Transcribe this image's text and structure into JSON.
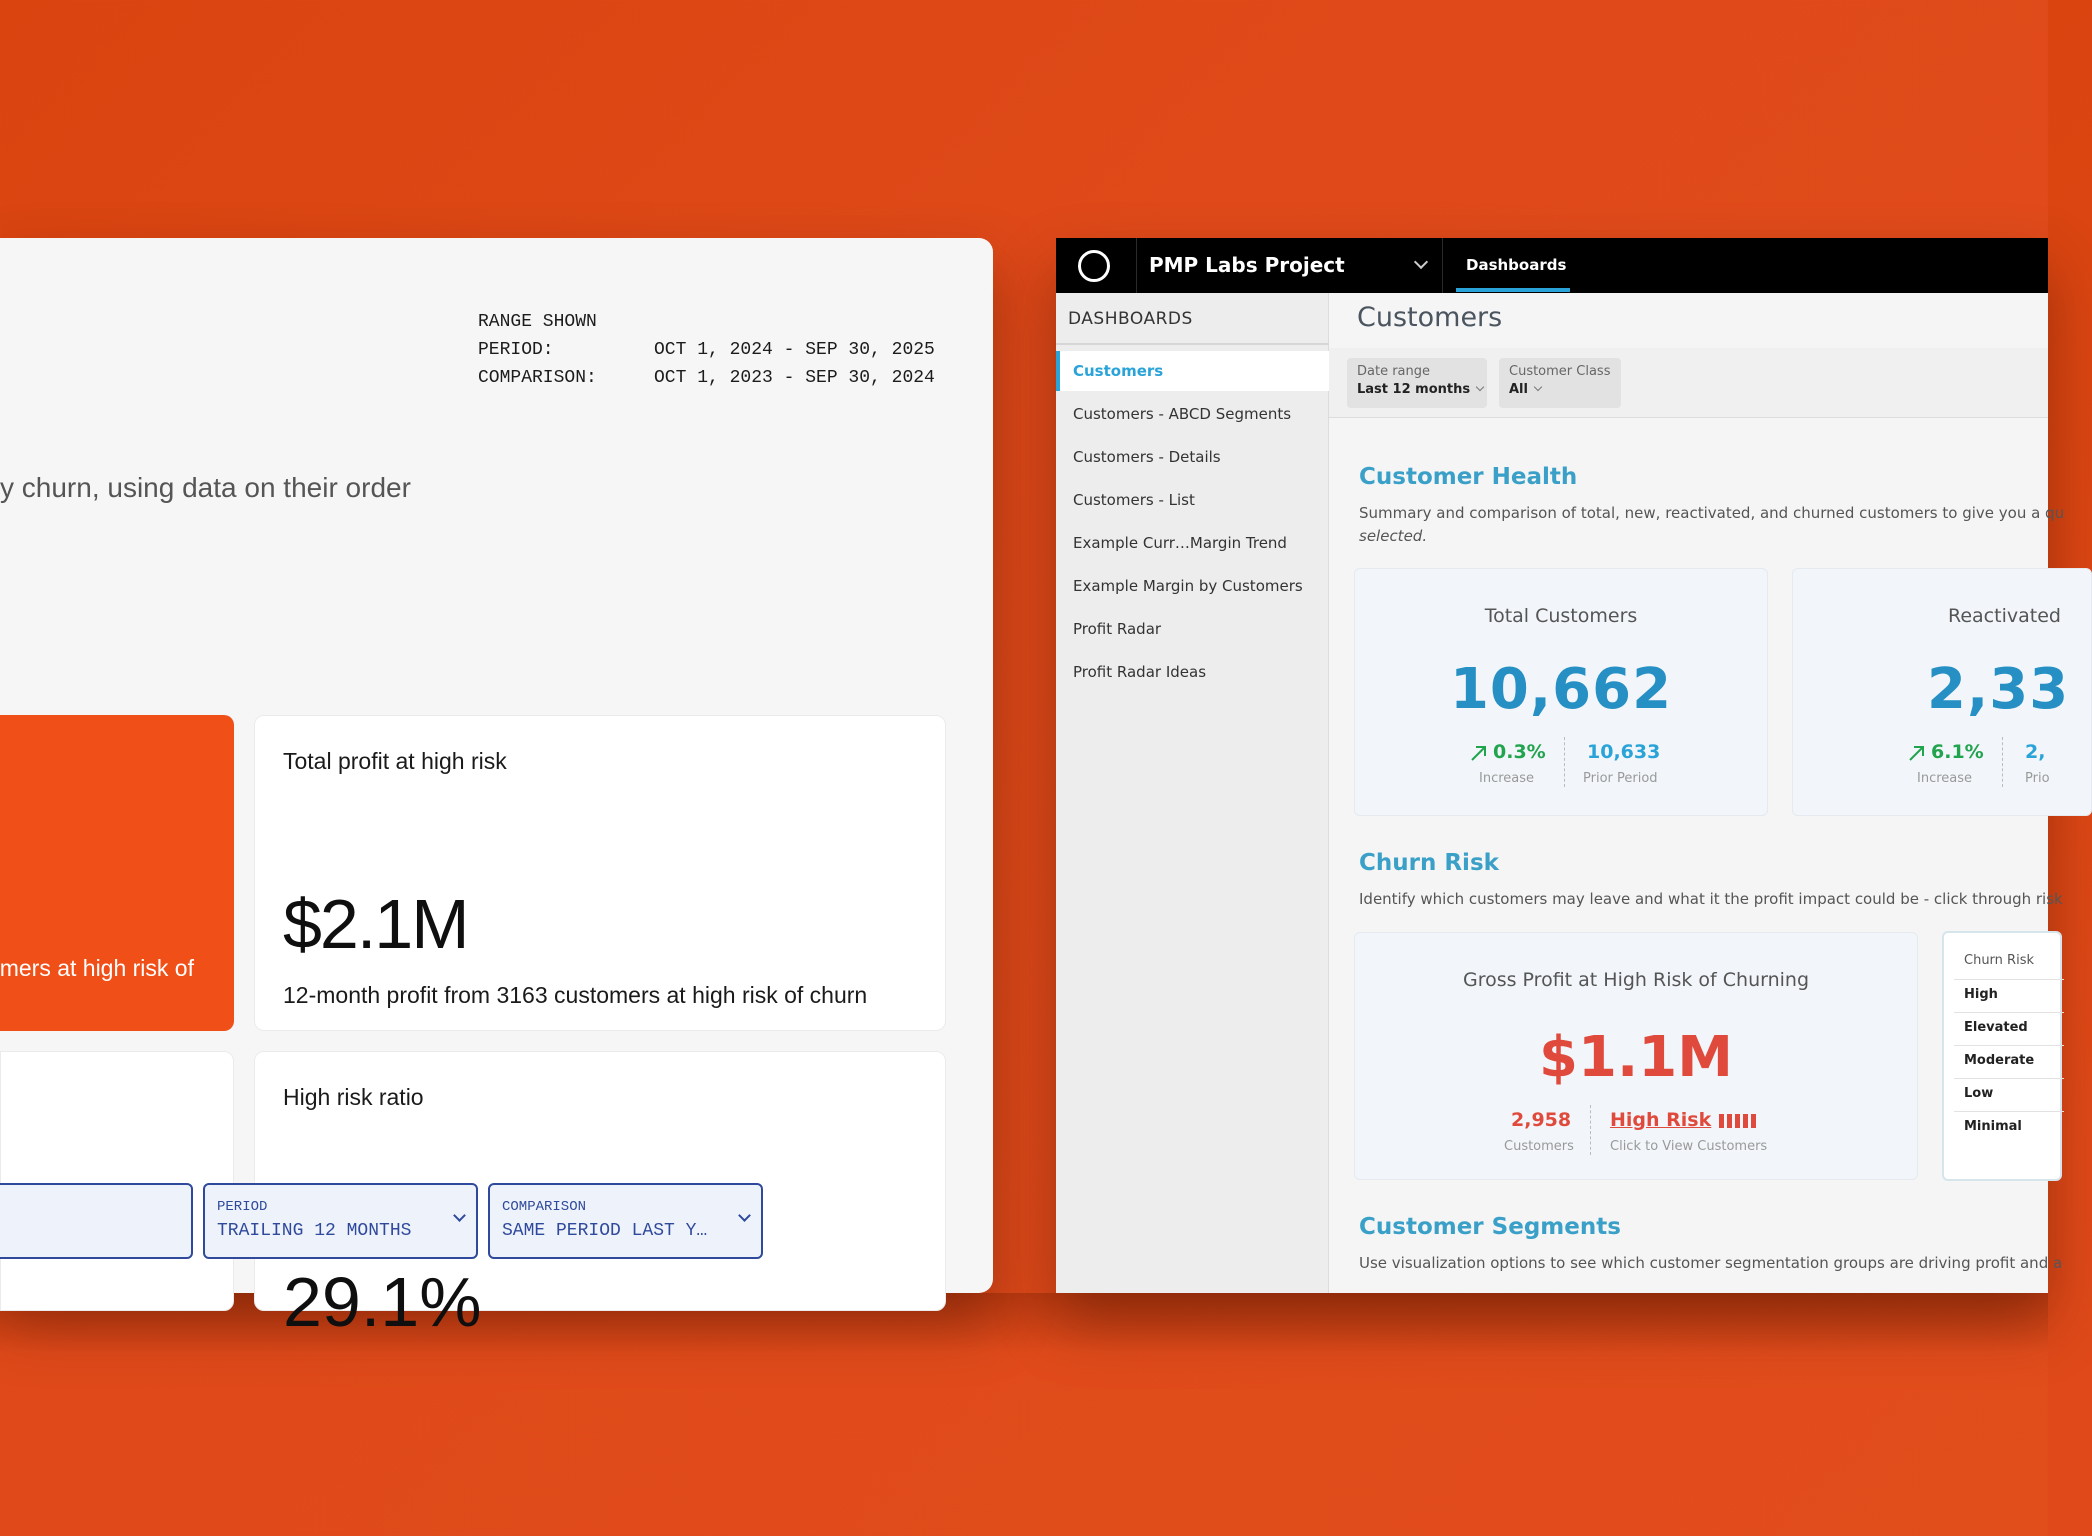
{
  "left": {
    "range": {
      "heading": "RANGE SHOWN",
      "period_label": "PERIOD:",
      "period_value": "OCT 1, 2024 - SEP 30, 2025",
      "comparison_label": "COMPARISON:",
      "comparison_value": "OCT 1, 2023 - SEP 30, 2024"
    },
    "intro_text": "y churn, using data on their order",
    "orange_card_text": "mers at high risk of",
    "profit_card": {
      "title": "Total profit at high risk",
      "value": "$2.1M",
      "subtitle": "12-month profit from 3163 customers at high risk of churn"
    },
    "ratio_card": {
      "title": "High risk ratio",
      "value": "29.1%"
    },
    "period_select": {
      "label": "PERIOD",
      "value": "TRAILING 12 MONTHS"
    },
    "comparison_select": {
      "label": "COMPARISON",
      "value": "SAME PERIOD LAST Y…"
    }
  },
  "right": {
    "project_name": "PMP Labs Project",
    "nav_tab": "Dashboards",
    "sidebar": {
      "heading": "DASHBOARDS",
      "items": [
        "Customers",
        "Customers - ABCD Segments",
        "Customers - Details",
        "Customers - List",
        "Example Curr…Margin Trend",
        "Example Margin by Customers",
        "Profit Radar",
        "Profit Radar Ideas"
      ]
    },
    "page_title": "Customers",
    "filters": {
      "date_range_label": "Date range",
      "date_range_value": "Last 12 months",
      "customer_class_label": "Customer Class",
      "customer_class_value": "All"
    },
    "health": {
      "title": "Customer Health",
      "desc_line1": "Summary and comparison of total, new, reactivated, and churned customers to give you a qu",
      "desc_line2": "selected.",
      "total": {
        "label": "Total Customers",
        "value": "10,662",
        "change": "0.3%",
        "change_caption": "Increase",
        "prior": "10,633",
        "prior_caption": "Prior Period"
      },
      "reactivated": {
        "label": "Reactivated",
        "value": "2,33",
        "change": "6.1%",
        "change_caption": "Increase",
        "prior": "2,",
        "prior_caption": "Prio"
      }
    },
    "churn": {
      "title": "Churn Risk",
      "desc": "Identify which customers may leave and what it the profit impact could be - click through risk",
      "card_label": "Gross Profit at High Risk of Churning",
      "value": "$1.1M",
      "count": "2,958",
      "count_caption": "Customers",
      "link": "High Risk",
      "link_caption": "Click to View Customers",
      "legend_title": "Churn Risk",
      "legend_items": [
        "High",
        "Elevated",
        "Moderate",
        "Low",
        "Minimal"
      ]
    },
    "segments": {
      "title": "Customer Segments",
      "desc": "Use visualization options to see which customer segmentation groups are driving profit and a"
    }
  },
  "colors": {
    "background": "#e04a1a",
    "accent_orange": "#f05018",
    "kpi_blue": "#2690c4",
    "risk_red": "#e04a3c",
    "increase_green": "#22a34e"
  },
  "icons": {
    "increase": "arrow-up-right-icon",
    "logo": "ring-logo-icon",
    "chevron": "chevron-down-icon"
  }
}
